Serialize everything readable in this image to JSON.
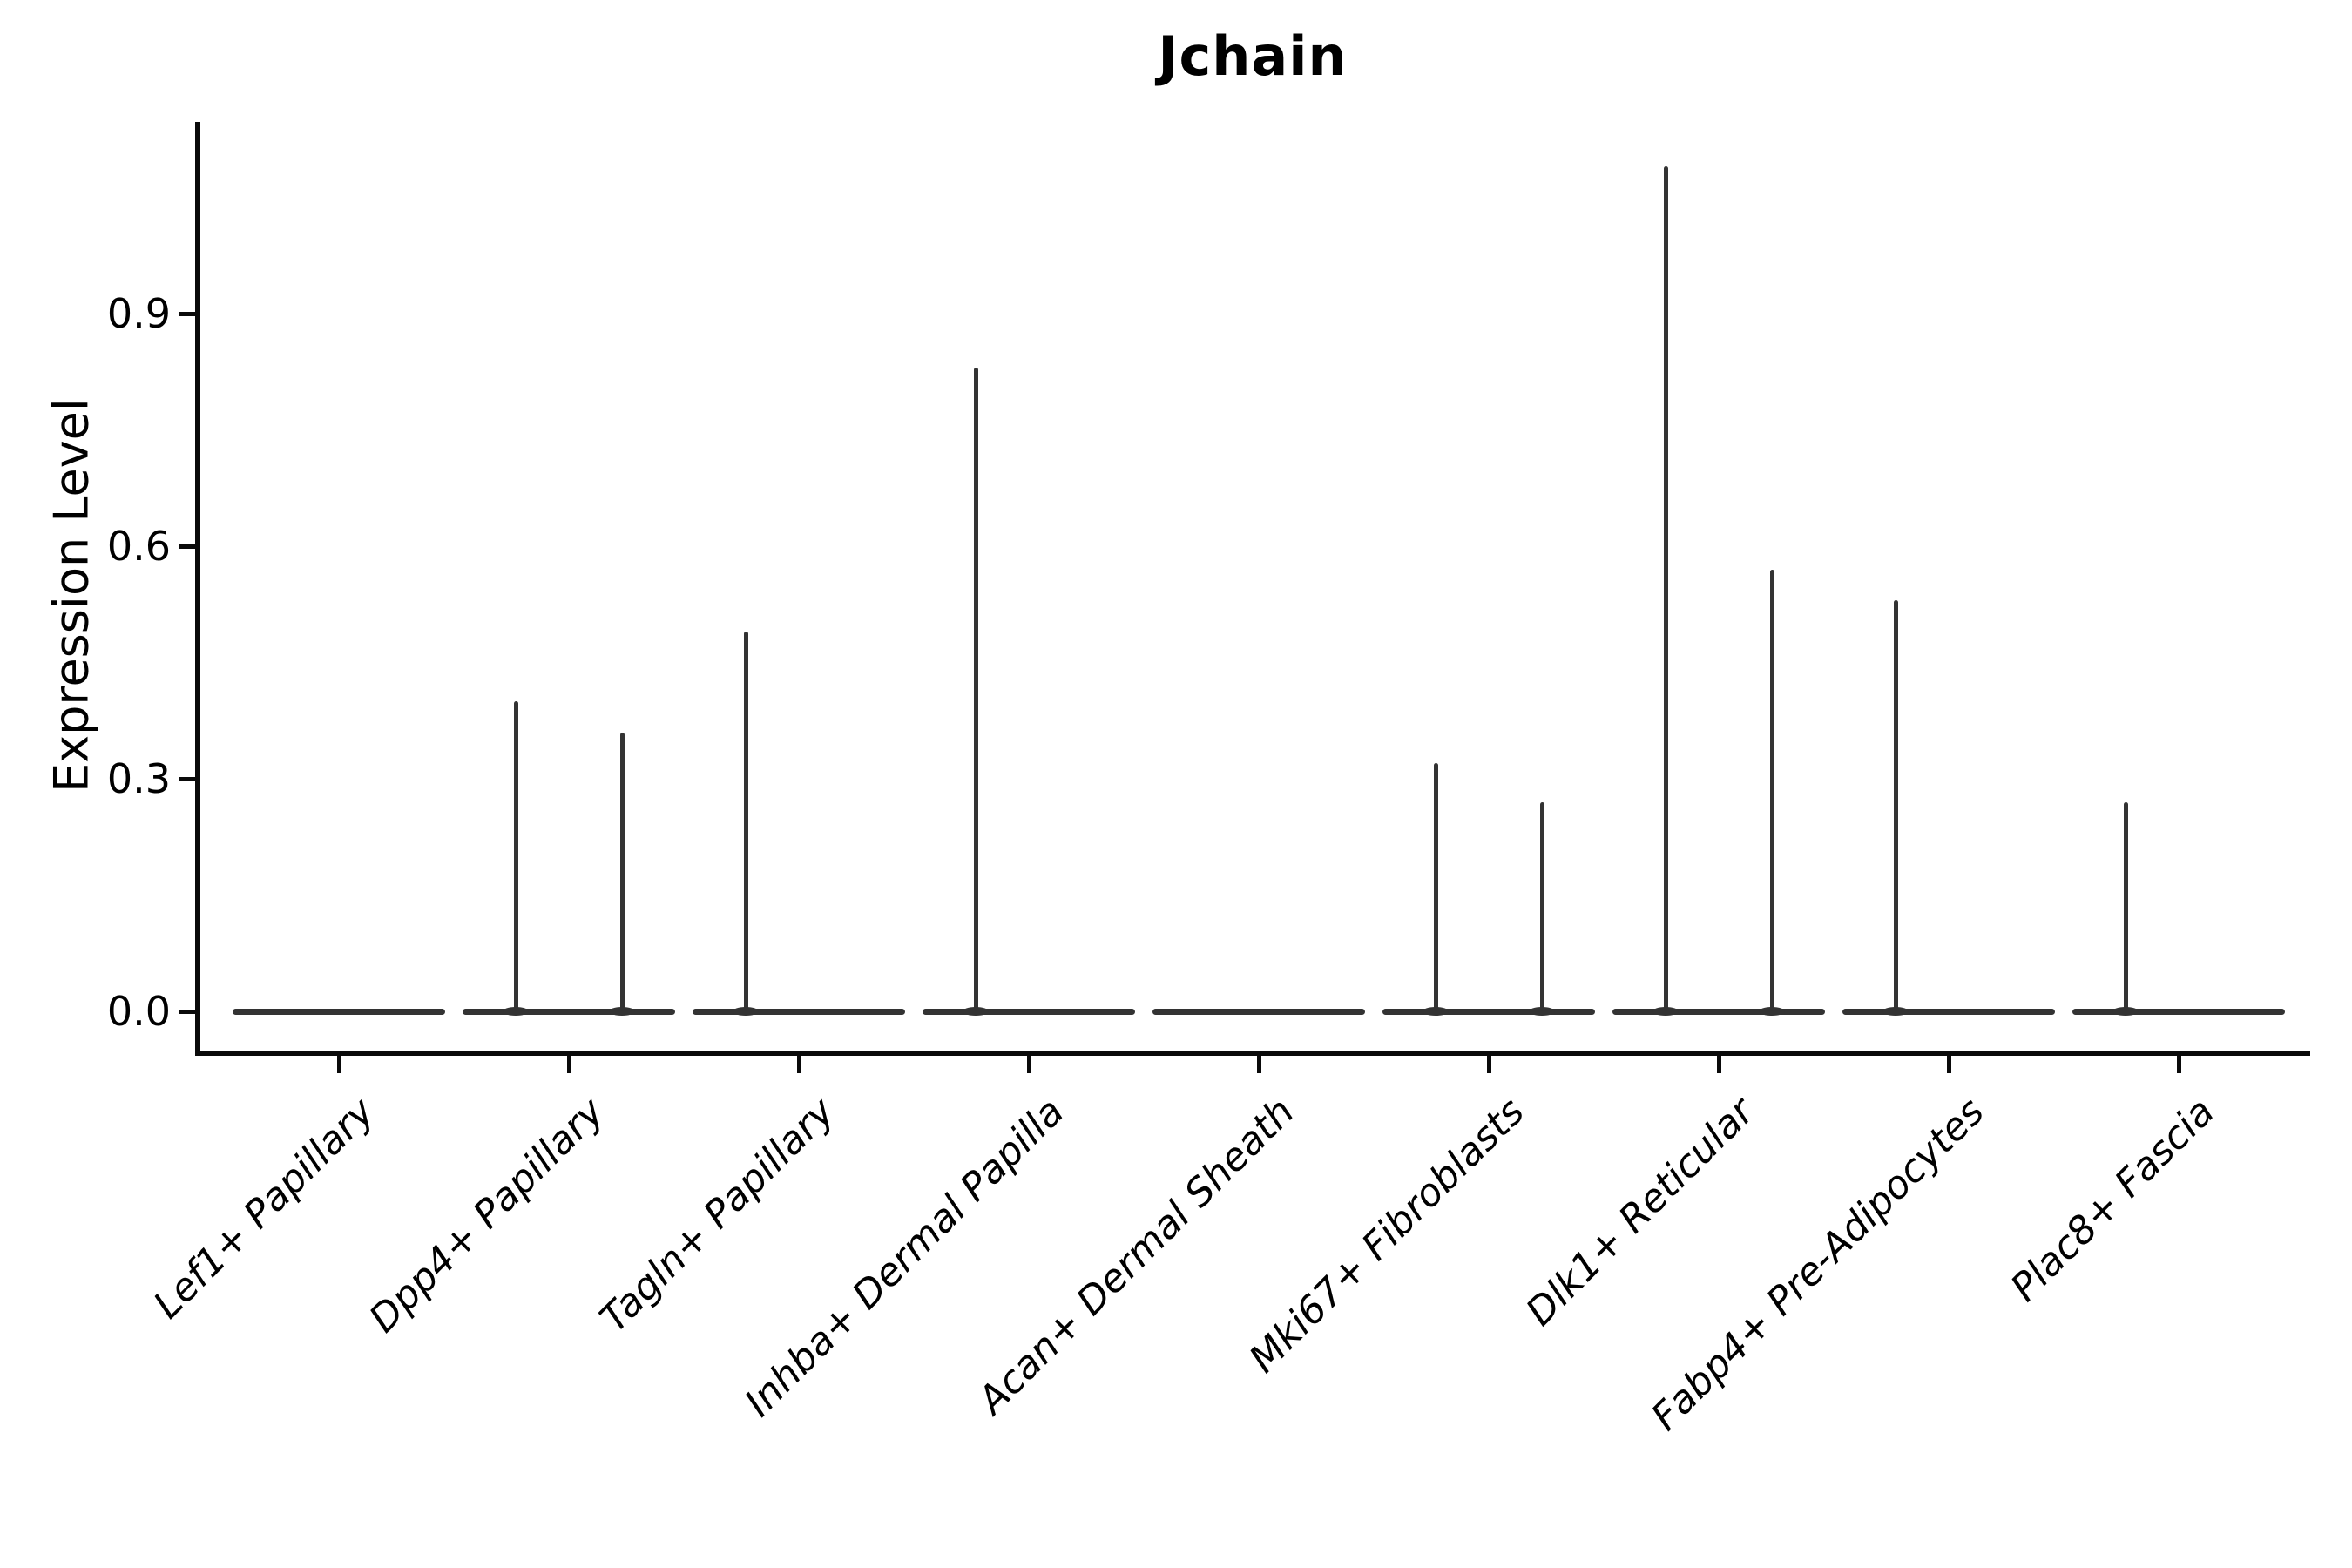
{
  "title": "Jchain",
  "chart_data": {
    "type": "violin",
    "title": "Jchain",
    "xlabel": "",
    "ylabel": "Expression Level",
    "ylim": [
      0.0,
      1.14
    ],
    "ytick_values": [
      0.0,
      0.3,
      0.6,
      0.9
    ],
    "ytick_labels": [
      "0.0",
      "0.3",
      "0.6",
      "0.9"
    ],
    "grid": false,
    "legend_position": "none",
    "violin_color": "#333333",
    "axis_color": "#0a0a0a",
    "description": "Flattened violins at expression 0 for every cluster; narrow density spikes rise at 25% / 75% of each violin width where rare cells express the gene.",
    "categories": [
      {
        "label": "Lef1+ Papillary",
        "max_expression": 0.0,
        "spikes": []
      },
      {
        "label": "Dpp4+ Papillary",
        "max_expression": 0.4,
        "spikes": [
          {
            "offset_frac": -0.25,
            "value": 0.4
          },
          {
            "offset_frac": 0.25,
            "value": 0.36
          }
        ]
      },
      {
        "label": "Tagln+ Papillary",
        "max_expression": 0.49,
        "spikes": [
          {
            "offset_frac": -0.25,
            "value": 0.49
          }
        ]
      },
      {
        "label": "Inhba+ Dermal Papilla",
        "max_expression": 0.83,
        "spikes": [
          {
            "offset_frac": -0.25,
            "value": 0.83
          }
        ]
      },
      {
        "label": "Acan+ Dermal Sheath",
        "max_expression": 0.0,
        "spikes": []
      },
      {
        "label": "Mki67+ Fibroblasts",
        "max_expression": 0.32,
        "spikes": [
          {
            "offset_frac": -0.25,
            "value": 0.32
          },
          {
            "offset_frac": 0.25,
            "value": 0.27
          }
        ]
      },
      {
        "label": "Dlk1+ Reticular",
        "max_expression": 1.09,
        "spikes": [
          {
            "offset_frac": -0.25,
            "value": 1.09
          },
          {
            "offset_frac": 0.25,
            "value": 0.57
          }
        ]
      },
      {
        "label": "Fabp4+ Pre-Adipocytes",
        "max_expression": 0.53,
        "spikes": [
          {
            "offset_frac": -0.25,
            "value": 0.53
          }
        ]
      },
      {
        "label": "Plac8+ Fascia",
        "max_expression": 0.27,
        "spikes": [
          {
            "offset_frac": -0.25,
            "value": 0.27
          }
        ]
      }
    ]
  }
}
